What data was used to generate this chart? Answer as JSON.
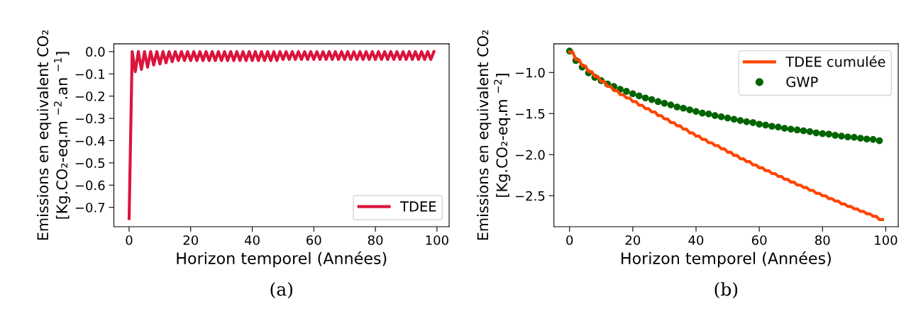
{
  "chart_data": [
    {
      "type": "line",
      "xlabel": "Horizon temporel (Années)",
      "ylabel": "Emissions en equivalent CO₂\n[Kg.CO₂-eq.m $^{−2}$.an $^{−1}$]",
      "annotations": [
        "(a)"
      ],
      "legend": "bottom right",
      "grid": false,
      "xlim": [
        -4.95,
        103.95
      ],
      "xticks": [
        0,
        20,
        40,
        60,
        80,
        100
      ],
      "ylim": [
        -0.787,
        0.035
      ],
      "yticks": [
        {
          "value": 0.0,
          "label": "0.0"
        },
        {
          "value": -0.1,
          "label": "−0.1"
        },
        {
          "value": -0.2,
          "label": "−0.2"
        },
        {
          "value": -0.3,
          "label": "−0.3"
        },
        {
          "value": -0.4,
          "label": "−0.4"
        },
        {
          "value": -0.5,
          "label": "−0.5"
        },
        {
          "value": -0.6,
          "label": "−0.6"
        },
        {
          "value": -0.7,
          "label": "−0.7"
        }
      ],
      "series": [
        {
          "name": "TDEE",
          "color": "#dc143c",
          "x": [
            0,
            1,
            2,
            3,
            4,
            5,
            6,
            7,
            8,
            9,
            10,
            11,
            12,
            13,
            14,
            15,
            16,
            17,
            18,
            19,
            20,
            21,
            22,
            23,
            24,
            25,
            26,
            27,
            28,
            29,
            30,
            31,
            32,
            33,
            34,
            35,
            36,
            37,
            38,
            39,
            40,
            41,
            42,
            43,
            44,
            45,
            46,
            47,
            48,
            49,
            50,
            51,
            52,
            53,
            54,
            55,
            56,
            57,
            58,
            59,
            60,
            61,
            62,
            63,
            64,
            65,
            66,
            67,
            68,
            69,
            70,
            71,
            72,
            73,
            74,
            75,
            76,
            77,
            78,
            79,
            80,
            81,
            82,
            83,
            84,
            85,
            86,
            87,
            88,
            89,
            90,
            91,
            92,
            93,
            94,
            95,
            96,
            97,
            98,
            99
          ],
          "values": [
            -0.75,
            0,
            -0.09,
            0,
            -0.08,
            0,
            -0.07,
            0,
            -0.06,
            0,
            -0.055,
            0,
            -0.05,
            0,
            -0.045,
            0,
            -0.04,
            0,
            -0.04,
            0,
            -0.04,
            0,
            -0.04,
            0,
            -0.04,
            0,
            -0.04,
            0,
            -0.04,
            0,
            -0.04,
            0,
            -0.04,
            0,
            -0.04,
            0,
            -0.04,
            0,
            -0.04,
            0,
            -0.04,
            0,
            -0.04,
            0,
            -0.04,
            0,
            -0.04,
            0,
            -0.04,
            0,
            -0.035,
            0,
            -0.035,
            0,
            -0.035,
            0,
            -0.035,
            0,
            -0.035,
            0,
            -0.035,
            0,
            -0.035,
            0,
            -0.035,
            0,
            -0.035,
            0,
            -0.035,
            0,
            -0.035,
            0,
            -0.035,
            0,
            -0.035,
            0,
            -0.035,
            0,
            -0.035,
            0,
            -0.035,
            0,
            -0.035,
            0,
            -0.035,
            0,
            -0.035,
            0,
            -0.035,
            0,
            -0.035,
            0,
            -0.035,
            0,
            -0.035,
            0,
            -0.035,
            0,
            -0.035,
            0
          ]
        }
      ]
    },
    {
      "type": "line",
      "xlabel": "Horizon temporel (Années)",
      "ylabel": "Emissions en equivalent CO₂\n[Kg.CO₂-eq.m $^{−2}$]",
      "annotations": [
        "(b)"
      ],
      "legend": "top right",
      "grid": false,
      "xlim": [
        -4.95,
        103.95
      ],
      "xticks": [
        0,
        20,
        40,
        60,
        80,
        100
      ],
      "ylim": [
        -2.877,
        -0.652
      ],
      "yticks": [
        {
          "value": -1.0,
          "label": "−1.0"
        },
        {
          "value": -1.5,
          "label": "−1.5"
        },
        {
          "value": -2.0,
          "label": "−2.0"
        },
        {
          "value": -2.5,
          "label": "−2.5"
        }
      ],
      "series": [
        {
          "name": "TDEE cumulée",
          "type": "line",
          "color": "#ff4500",
          "x": [
            0,
            1,
            2,
            3,
            4,
            5,
            6,
            7,
            8,
            9,
            10,
            11,
            12,
            13,
            14,
            15,
            16,
            17,
            18,
            19,
            20,
            21,
            22,
            23,
            24,
            25,
            26,
            27,
            28,
            29,
            30,
            31,
            32,
            33,
            34,
            35,
            36,
            37,
            38,
            39,
            40,
            41,
            42,
            43,
            44,
            45,
            46,
            47,
            48,
            49,
            50,
            51,
            52,
            53,
            54,
            55,
            56,
            57,
            58,
            59,
            60,
            61,
            62,
            63,
            64,
            65,
            66,
            67,
            68,
            69,
            70,
            71,
            72,
            73,
            74,
            75,
            76,
            77,
            78,
            79,
            80,
            81,
            82,
            83,
            84,
            85,
            86,
            87,
            88,
            89,
            90,
            91,
            92,
            93,
            94,
            95,
            96,
            97,
            98,
            99
          ],
          "values": [
            -0.75,
            -0.75,
            -0.845,
            -0.845,
            -0.92,
            -0.92,
            -0.99,
            -0.99,
            -1.05,
            -1.05,
            -1.11,
            -1.11,
            -1.17,
            -1.17,
            -1.22,
            -1.22,
            -1.27,
            -1.27,
            -1.31,
            -1.31,
            -1.355,
            -1.355,
            -1.4,
            -1.4,
            -1.44,
            -1.44,
            -1.48,
            -1.48,
            -1.525,
            -1.525,
            -1.565,
            -1.565,
            -1.61,
            -1.61,
            -1.65,
            -1.65,
            -1.69,
            -1.69,
            -1.735,
            -1.735,
            -1.775,
            -1.775,
            -1.815,
            -1.815,
            -1.855,
            -1.855,
            -1.89,
            -1.89,
            -1.93,
            -1.93,
            -1.97,
            -1.97,
            -2.01,
            -2.01,
            -2.05,
            -2.05,
            -2.085,
            -2.085,
            -2.125,
            -2.125,
            -2.16,
            -2.16,
            -2.195,
            -2.195,
            -2.23,
            -2.23,
            -2.265,
            -2.265,
            -2.3,
            -2.3,
            -2.335,
            -2.335,
            -2.37,
            -2.37,
            -2.4,
            -2.4,
            -2.435,
            -2.435,
            -2.47,
            -2.47,
            -2.5,
            -2.5,
            -2.535,
            -2.535,
            -2.565,
            -2.565,
            -2.6,
            -2.6,
            -2.63,
            -2.63,
            -2.66,
            -2.66,
            -2.69,
            -2.69,
            -2.72,
            -2.72,
            -2.75,
            -2.75,
            -2.79,
            -2.79
          ]
        },
        {
          "name": "GWP",
          "type": "scatter",
          "color": "#006400",
          "x": [
            0,
            2,
            4,
            6,
            8,
            10,
            12,
            14,
            16,
            18,
            20,
            22,
            24,
            26,
            28,
            30,
            32,
            34,
            36,
            38,
            40,
            42,
            44,
            46,
            48,
            50,
            52,
            54,
            56,
            58,
            60,
            62,
            64,
            66,
            68,
            70,
            72,
            74,
            76,
            78,
            80,
            82,
            84,
            86,
            88,
            90,
            92,
            94,
            96,
            98
          ],
          "values": [
            -0.74,
            -0.855,
            -0.935,
            -1.005,
            -1.06,
            -1.1,
            -1.14,
            -1.17,
            -1.205,
            -1.23,
            -1.26,
            -1.285,
            -1.31,
            -1.33,
            -1.355,
            -1.375,
            -1.395,
            -1.42,
            -1.435,
            -1.455,
            -1.475,
            -1.495,
            -1.505,
            -1.525,
            -1.54,
            -1.555,
            -1.57,
            -1.585,
            -1.6,
            -1.61,
            -1.63,
            -1.64,
            -1.655,
            -1.665,
            -1.68,
            -1.69,
            -1.7,
            -1.71,
            -1.72,
            -1.735,
            -1.745,
            -1.75,
            -1.765,
            -1.775,
            -1.785,
            -1.79,
            -1.8,
            -1.81,
            -1.815,
            -1.83
          ]
        }
      ]
    }
  ]
}
